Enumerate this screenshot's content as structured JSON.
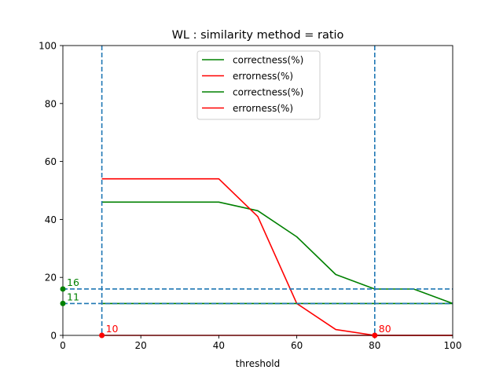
{
  "chart_data": {
    "type": "line",
    "title": "WL : similarity method = ratio",
    "xlabel": "threshold",
    "ylabel": "",
    "xlim": [
      0,
      100
    ],
    "ylim": [
      0,
      100
    ],
    "xticks": [
      "0",
      "20",
      "40",
      "60",
      "80",
      "100"
    ],
    "yticks": [
      "0",
      "20",
      "40",
      "60",
      "80",
      "100"
    ],
    "grid": false,
    "legend_position": "top-center",
    "series": [
      {
        "name": "correctness(%)",
        "color": "#008000",
        "x": [
          10,
          20,
          30,
          40,
          50,
          60,
          70,
          80,
          90,
          100
        ],
        "y": [
          46,
          46,
          46,
          46,
          43,
          34,
          21,
          16,
          16,
          11
        ]
      },
      {
        "name": "errorness(%)",
        "color": "#ff0000",
        "x": [
          10,
          20,
          30,
          40,
          50,
          60,
          70,
          80,
          90,
          100
        ],
        "y": [
          54,
          54,
          54,
          54,
          41,
          11,
          2,
          0,
          0,
          0
        ]
      },
      {
        "name": "correctness(%)",
        "color": "#008000",
        "x": [
          10,
          100
        ],
        "y": [
          11,
          11
        ]
      },
      {
        "name": "errorness(%)",
        "color": "#ff0000",
        "x": [
          10,
          100
        ],
        "y": [
          0,
          0
        ]
      }
    ],
    "reference_lines": {
      "color": "#1f77b4",
      "vertical_x": [
        10,
        80
      ],
      "horizontal_y": [
        16,
        11
      ]
    },
    "annotations": [
      {
        "text": "16",
        "x": 0,
        "y": 16,
        "color": "#008000"
      },
      {
        "text": "11",
        "x": 0,
        "y": 11,
        "color": "#008000"
      },
      {
        "text": "10",
        "x": 10,
        "y": 0,
        "color": "#ff0000"
      },
      {
        "text": "80",
        "x": 80,
        "y": 0,
        "color": "#ff0000"
      }
    ]
  }
}
